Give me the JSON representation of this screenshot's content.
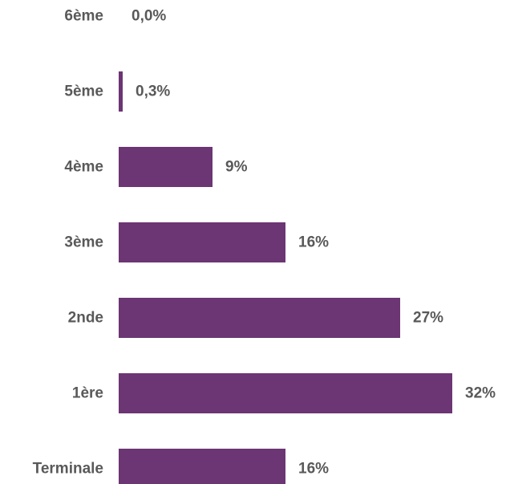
{
  "chart_data": {
    "type": "bar",
    "orientation": "horizontal",
    "categories": [
      "6ème",
      "5ème",
      "4ème",
      "3ème",
      "2nde",
      "1ère",
      "Terminale"
    ],
    "values": [
      0.0,
      0.3,
      9,
      16,
      27,
      32,
      16
    ],
    "value_labels": [
      "0,0%",
      "0,3%",
      "9%",
      "16%",
      "27%",
      "32%",
      "16%"
    ],
    "unit": "%",
    "xlim": [
      0,
      32
    ],
    "grid": false,
    "legend": "none",
    "bar_color": "#6c3573",
    "label_color": "#595959"
  }
}
